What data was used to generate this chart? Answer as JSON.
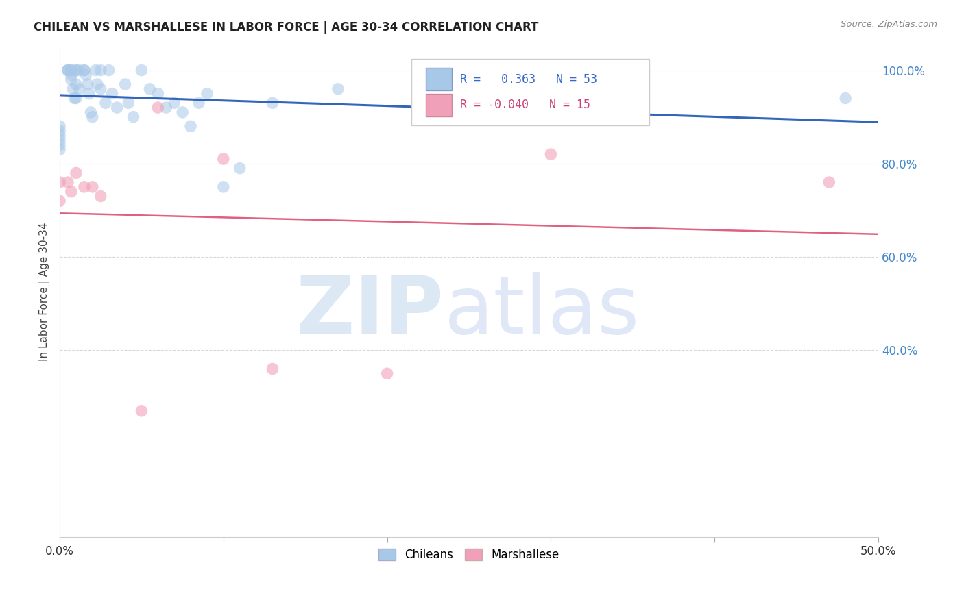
{
  "title": "CHILEAN VS MARSHALLESE IN LABOR FORCE | AGE 30-34 CORRELATION CHART",
  "source": "Source: ZipAtlas.com",
  "ylabel": "In Labor Force | Age 30-34",
  "x_min": 0.0,
  "x_max": 0.5,
  "y_min": 0.0,
  "y_max": 1.05,
  "x_tick_positions": [
    0.0,
    0.1,
    0.2,
    0.3,
    0.4,
    0.5
  ],
  "x_tick_labels": [
    "0.0%",
    "",
    "",
    "",
    "",
    "50.0%"
  ],
  "y_ticks_right": [
    1.0,
    0.8,
    0.6,
    0.4
  ],
  "y_tick_labels_right": [
    "100.0%",
    "80.0%",
    "60.0%",
    "40.0%"
  ],
  "grid_color": "#d8d8d8",
  "background_color": "#ffffff",
  "blue_color": "#a8c8e8",
  "blue_line_color": "#3366bb",
  "pink_color": "#f0a0b8",
  "pink_line_color": "#e06080",
  "r_blue": 0.363,
  "n_blue": 53,
  "r_pink": -0.04,
  "n_pink": 15,
  "legend_label_blue": "Chileans",
  "legend_label_pink": "Marshallese",
  "chilean_x": [
    0.0,
    0.0,
    0.0,
    0.0,
    0.0,
    0.0,
    0.005,
    0.005,
    0.005,
    0.007,
    0.007,
    0.007,
    0.007,
    0.008,
    0.009,
    0.01,
    0.01,
    0.01,
    0.01,
    0.012,
    0.012,
    0.015,
    0.015,
    0.016,
    0.017,
    0.018,
    0.019,
    0.02,
    0.022,
    0.023,
    0.025,
    0.025,
    0.028,
    0.03,
    0.032,
    0.035,
    0.04,
    0.042,
    0.045,
    0.05,
    0.055,
    0.06,
    0.065,
    0.07,
    0.075,
    0.08,
    0.085,
    0.09,
    0.1,
    0.11,
    0.13,
    0.17,
    0.48
  ],
  "chilean_y": [
    0.88,
    0.87,
    0.86,
    0.85,
    0.84,
    0.83,
    1.0,
    1.0,
    1.0,
    1.0,
    1.0,
    0.99,
    0.98,
    0.96,
    0.94,
    1.0,
    1.0,
    0.97,
    0.94,
    1.0,
    0.96,
    1.0,
    1.0,
    0.99,
    0.97,
    0.95,
    0.91,
    0.9,
    1.0,
    0.97,
    1.0,
    0.96,
    0.93,
    1.0,
    0.95,
    0.92,
    0.97,
    0.93,
    0.9,
    1.0,
    0.96,
    0.95,
    0.92,
    0.93,
    0.91,
    0.88,
    0.93,
    0.95,
    0.75,
    0.79,
    0.93,
    0.96,
    0.94
  ],
  "marshallese_x": [
    0.0,
    0.0,
    0.005,
    0.007,
    0.01,
    0.015,
    0.02,
    0.025,
    0.05,
    0.06,
    0.1,
    0.2,
    0.3,
    0.47,
    0.13
  ],
  "marshallese_y": [
    0.76,
    0.72,
    0.76,
    0.74,
    0.78,
    0.75,
    0.75,
    0.73,
    0.27,
    0.92,
    0.81,
    0.35,
    0.82,
    0.76,
    0.36
  ]
}
